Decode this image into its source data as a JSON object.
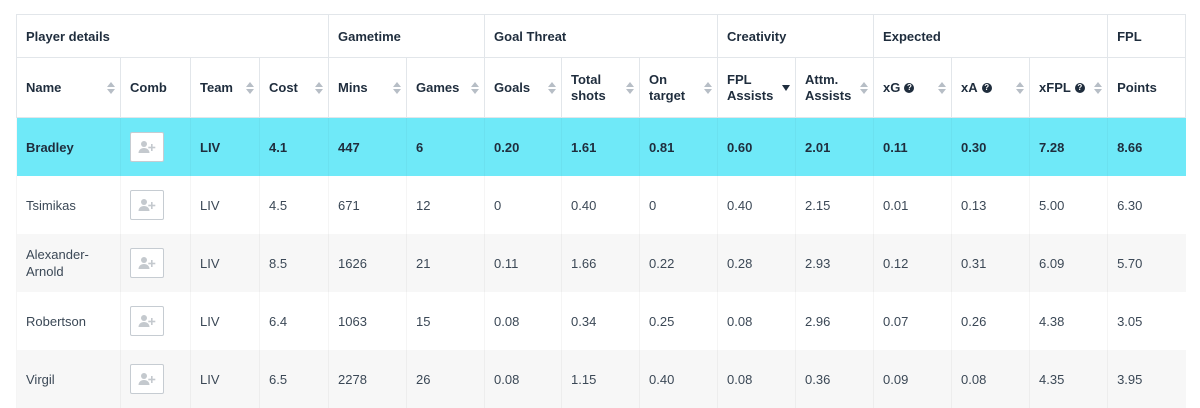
{
  "groups": [
    {
      "label": "Player details",
      "span": 4
    },
    {
      "label": "Gametime",
      "span": 2
    },
    {
      "label": "Goal Threat",
      "span": 3
    },
    {
      "label": "Creativity",
      "span": 2
    },
    {
      "label": "Expected",
      "span": 3
    },
    {
      "label": "FPL",
      "span": 1
    }
  ],
  "columns": [
    {
      "key": "name",
      "label": "Name",
      "sort": "both"
    },
    {
      "key": "comb",
      "label": "Comb",
      "sort": "none"
    },
    {
      "key": "team",
      "label": "Team",
      "sort": "both"
    },
    {
      "key": "cost",
      "label": "Cost",
      "sort": "both"
    },
    {
      "key": "mins",
      "label": "Mins",
      "sort": "both"
    },
    {
      "key": "games",
      "label": "Games",
      "sort": "both"
    },
    {
      "key": "goals",
      "label": "Goals",
      "sort": "both"
    },
    {
      "key": "total_shots",
      "label": "Total shots",
      "sort": "both"
    },
    {
      "key": "on_target",
      "label": "On target",
      "sort": "both"
    },
    {
      "key": "fpl_assists",
      "label": "FPL Assists",
      "sort": "desc"
    },
    {
      "key": "attm_assists",
      "label": "Attm. Assists",
      "sort": "both"
    },
    {
      "key": "xg",
      "label": "xG",
      "sort": "both",
      "help": true
    },
    {
      "key": "xa",
      "label": "xA",
      "sort": "both",
      "help": true
    },
    {
      "key": "xfpl",
      "label": "xFPL",
      "sort": "both",
      "help": true
    },
    {
      "key": "points",
      "label": "Points",
      "sort": "none"
    }
  ],
  "rows": [
    {
      "highlight": true,
      "name": "Bradley",
      "team": "LIV",
      "cost": "4.1",
      "mins": "447",
      "games": "6",
      "goals": "0.20",
      "total_shots": "1.61",
      "on_target": "0.81",
      "fpl_assists": "0.60",
      "attm_assists": "2.01",
      "xg": "0.11",
      "xa": "0.30",
      "xfpl": "7.28",
      "points": "8.66"
    },
    {
      "highlight": false,
      "name": "Tsimikas",
      "team": "LIV",
      "cost": "4.5",
      "mins": "671",
      "games": "12",
      "goals": "0",
      "total_shots": "0.40",
      "on_target": "0",
      "fpl_assists": "0.40",
      "attm_assists": "2.15",
      "xg": "0.01",
      "xa": "0.13",
      "xfpl": "5.00",
      "points": "6.30"
    },
    {
      "highlight": false,
      "name": "Alexander-Arnold",
      "team": "LIV",
      "cost": "8.5",
      "mins": "1626",
      "games": "21",
      "goals": "0.11",
      "total_shots": "1.66",
      "on_target": "0.22",
      "fpl_assists": "0.28",
      "attm_assists": "2.93",
      "xg": "0.12",
      "xa": "0.31",
      "xfpl": "6.09",
      "points": "5.70"
    },
    {
      "highlight": false,
      "name": "Robertson",
      "team": "LIV",
      "cost": "6.4",
      "mins": "1063",
      "games": "15",
      "goals": "0.08",
      "total_shots": "0.34",
      "on_target": "0.25",
      "fpl_assists": "0.08",
      "attm_assists": "2.96",
      "xg": "0.07",
      "xa": "0.26",
      "xfpl": "4.38",
      "points": "3.05"
    },
    {
      "highlight": false,
      "name": "Virgil",
      "team": "LIV",
      "cost": "6.5",
      "mins": "2278",
      "games": "26",
      "goals": "0.08",
      "total_shots": "1.15",
      "on_target": "0.40",
      "fpl_assists": "0.08",
      "attm_assists": "0.36",
      "xg": "0.09",
      "xa": "0.08",
      "xfpl": "4.35",
      "points": "3.95"
    }
  ],
  "icons": {
    "comb": "add-player-icon",
    "help": "question-icon",
    "sort": "sort-icon"
  },
  "colors": {
    "highlight": "#6fe9f8",
    "stripe": "#f7f7f7",
    "text": "#1f2d3d"
  }
}
